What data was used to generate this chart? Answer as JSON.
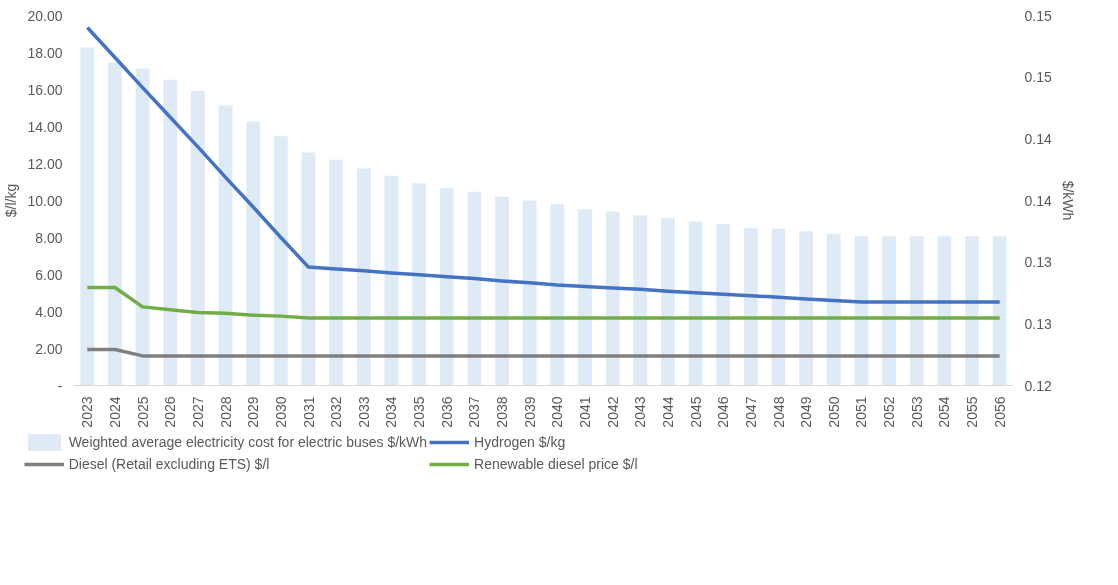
{
  "chart_data": {
    "type": "line",
    "ylabel": "$/l/kg",
    "y2label": "$/kWh",
    "categories": [
      "2023",
      "2024",
      "2025",
      "2026",
      "2027",
      "2028",
      "2029",
      "2030",
      "2031",
      "2032",
      "2033",
      "2034",
      "2035",
      "2036",
      "2037",
      "2038",
      "2039",
      "2040",
      "2041",
      "2042",
      "2043",
      "2044",
      "2045",
      "2046",
      "2047",
      "2048",
      "2049",
      "2050",
      "2051",
      "2052",
      "2053",
      "2054",
      "2055",
      "2056"
    ],
    "ylim": [
      0,
      20
    ],
    "yticks": [
      {
        "value": 0,
        "label": "-"
      },
      {
        "value": 2,
        "label": "2.00"
      },
      {
        "value": 4,
        "label": "4.00"
      },
      {
        "value": 6,
        "label": "6.00"
      },
      {
        "value": 8,
        "label": "8.00"
      },
      {
        "value": 10,
        "label": "10.00"
      },
      {
        "value": 12,
        "label": "12.00"
      },
      {
        "value": 14,
        "label": "14.00"
      },
      {
        "value": 16,
        "label": "16.00"
      },
      {
        "value": 18,
        "label": "18.00"
      },
      {
        "value": 20,
        "label": "20.00"
      }
    ],
    "y2lim": [
      0.12,
      0.15
    ],
    "y2ticks": [
      {
        "value": 0.12,
        "label": "0.12"
      },
      {
        "value": 0.125,
        "label": "0.13"
      },
      {
        "value": 0.13,
        "label": "0.13"
      },
      {
        "value": 0.135,
        "label": "0.14"
      },
      {
        "value": 0.14,
        "label": "0.14"
      },
      {
        "value": 0.145,
        "label": "0.15"
      },
      {
        "value": 0.15,
        "label": "0.15"
      }
    ],
    "legend": "bottom",
    "marker": "none",
    "line_style": "solid",
    "series": [
      {
        "name": "Weighted average electricity cost for electric buses $/kWh",
        "type": "bar",
        "axis": "y2",
        "color": "#deebf7",
        "values": [
          0.1474,
          0.1462,
          0.1457,
          0.1448,
          0.1439,
          0.1427,
          0.1414,
          0.1402,
          0.1389,
          0.1383,
          0.1376,
          0.137,
          0.1364,
          0.136,
          0.1357,
          0.1353,
          0.135,
          0.1347,
          0.1343,
          0.1341,
          0.1338,
          0.1336,
          0.1333,
          0.1331,
          0.1328,
          0.1327,
          0.1325,
          0.1323,
          0.1321,
          0.1321,
          0.1321,
          0.1321,
          0.1321,
          0.1321
        ]
      },
      {
        "name": "Diesel (Retail excluding ETS) $/l",
        "color": "#7f7f7f",
        "values": [
          1.95,
          1.95,
          1.6,
          1.6,
          1.6,
          1.6,
          1.6,
          1.6,
          1.6,
          1.6,
          1.6,
          1.6,
          1.6,
          1.6,
          1.6,
          1.6,
          1.6,
          1.6,
          1.6,
          1.6,
          1.6,
          1.6,
          1.6,
          1.6,
          1.6,
          1.6,
          1.6,
          1.6,
          1.6,
          1.6,
          1.6,
          1.6,
          1.6,
          1.6
        ]
      },
      {
        "name": "Hydrogen $/kg",
        "color": "#4472c4",
        "values": [
          19.35,
          17.73,
          16.1,
          14.5,
          12.9,
          11.25,
          9.65,
          8.0,
          6.4,
          6.3,
          6.2,
          6.08,
          5.98,
          5.88,
          5.78,
          5.65,
          5.55,
          5.43,
          5.35,
          5.27,
          5.2,
          5.1,
          5.02,
          4.93,
          4.85,
          4.77,
          4.68,
          4.6,
          4.52,
          4.52,
          4.52,
          4.52,
          4.52,
          4.52
        ]
      },
      {
        "name": "Renewable diesel price $/l",
        "color": "#70ad47",
        "values": [
          5.3,
          5.3,
          4.25,
          4.1,
          3.95,
          3.9,
          3.8,
          3.75,
          3.65,
          3.65,
          3.65,
          3.65,
          3.65,
          3.65,
          3.65,
          3.65,
          3.65,
          3.65,
          3.65,
          3.65,
          3.65,
          3.65,
          3.65,
          3.65,
          3.65,
          3.65,
          3.65,
          3.65,
          3.65,
          3.65,
          3.65,
          3.65,
          3.65,
          3.65
        ]
      }
    ]
  }
}
